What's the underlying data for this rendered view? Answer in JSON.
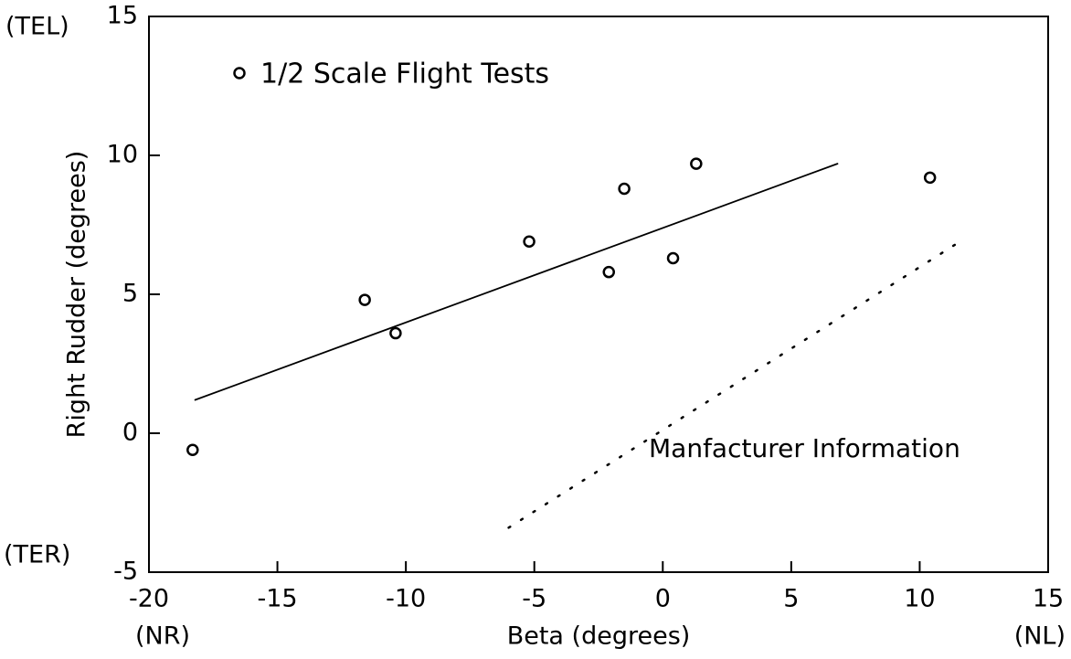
{
  "chart_data": {
    "type": "scatter",
    "x_label": "Beta (degrees)",
    "y_label": "Right Rudder (degrees)",
    "x_end_labels": {
      "left": "(NR)",
      "right": "(NL)"
    },
    "y_end_labels": {
      "top": "(TEL)",
      "bottom": "(TER)"
    },
    "xlim": [
      -20,
      15
    ],
    "ylim": [
      -5,
      15
    ],
    "xticks": [
      -20,
      -15,
      -10,
      -5,
      0,
      5,
      10,
      15
    ],
    "yticks": [
      -5,
      0,
      5,
      10,
      15
    ],
    "series": [
      {
        "name": "1/2 Scale Flight Tests",
        "color": "#000000",
        "marker": "circle",
        "x": [
          -18.3,
          -11.6,
          -10.4,
          -5.2,
          -2.1,
          -1.5,
          0.4,
          1.3,
          10.4
        ],
        "values": [
          -0.6,
          4.8,
          3.6,
          6.9,
          5.8,
          8.8,
          6.3,
          9.7,
          9.2
        ]
      },
      {
        "color": "#000000",
        "line_style": "solid",
        "x": [
          -18.2,
          6.8
        ],
        "values": [
          1.2,
          9.7
        ]
      },
      {
        "name": "Manfacturer Information",
        "color": "#000000",
        "line_style": "dotted",
        "x": [
          -6.0,
          11.4
        ],
        "values": [
          -3.4,
          6.8
        ]
      }
    ]
  }
}
